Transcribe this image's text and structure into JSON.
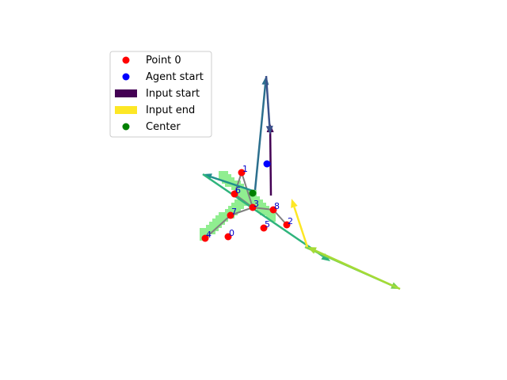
{
  "chart_data": {
    "type": "scatter",
    "axes_visible": false,
    "xlim": [
      0,
      640
    ],
    "ylim": [
      480,
      0
    ],
    "mask": {
      "color": "#90ee90",
      "segments": [
        {
          "from": [
            257,
            296
          ],
          "to": [
            319,
            245
          ],
          "width": 14
        },
        {
          "from": [
            282,
            222
          ],
          "to": [
            343,
            272
          ],
          "width": 14
        }
      ]
    },
    "points": [
      {
        "label": "0",
        "x": 288,
        "y": 299
      },
      {
        "label": "1",
        "x": 305,
        "y": 218
      },
      {
        "label": "2",
        "x": 362,
        "y": 284
      },
      {
        "label": "3",
        "x": 319,
        "y": 262
      },
      {
        "label": "4",
        "x": 259,
        "y": 301
      },
      {
        "label": "5",
        "x": 333,
        "y": 288
      },
      {
        "label": "6",
        "x": 296,
        "y": 245
      },
      {
        "label": "7",
        "x": 291,
        "y": 272
      },
      {
        "label": "8",
        "x": 345,
        "y": 265
      }
    ],
    "point_color": "#ff0000",
    "label_color": "#0000cc",
    "skeleton": {
      "color": "#808080",
      "edges": [
        [
          4,
          7
        ],
        [
          7,
          3
        ],
        [
          3,
          6
        ],
        [
          6,
          1
        ],
        [
          1,
          3
        ],
        [
          3,
          8
        ],
        [
          8,
          2
        ]
      ]
    },
    "agent_start": {
      "x": 337,
      "y": 207,
      "color": "#0000ff"
    },
    "center": {
      "x": 319,
      "y": 244,
      "color": "#008000"
    },
    "arrows": [
      {
        "from": [
          342,
          247
        ],
        "to": [
          341,
          156
        ],
        "color": "#440154"
      },
      {
        "from": [
          322,
          240
        ],
        "to": [
          336,
          96
        ],
        "color": "#2c6f8e"
      },
      {
        "from": [
          336,
          96
        ],
        "to": [
          341,
          170
        ],
        "color": "#3b528b"
      },
      {
        "from": [
          322,
          242
        ],
        "to": [
          256,
          220
        ],
        "color": "#21918c"
      },
      {
        "from": [
          256,
          220
        ],
        "to": [
          417,
          330
        ],
        "color": "#2fb47c"
      },
      {
        "from": [
          385,
          312
        ],
        "to": [
          505,
          365
        ],
        "color": "#7ad151"
      },
      {
        "from": [
          505,
          365
        ],
        "to": [
          388,
          312
        ],
        "color": "#a5db36"
      },
      {
        "from": [
          388,
          312
        ],
        "to": [
          368,
          251
        ],
        "color": "#fde725"
      }
    ],
    "legend": {
      "placement": "upper-left",
      "entries": [
        {
          "label": "Point 0",
          "marker": "circle",
          "color": "#ff0000"
        },
        {
          "label": "Agent start",
          "marker": "circle",
          "color": "#0000ff"
        },
        {
          "label": "Input start",
          "marker": "rect",
          "color": "#440154"
        },
        {
          "label": "Input end",
          "marker": "rect",
          "color": "#fde725"
        },
        {
          "label": "Center",
          "marker": "circle",
          "color": "#008000"
        }
      ]
    }
  }
}
